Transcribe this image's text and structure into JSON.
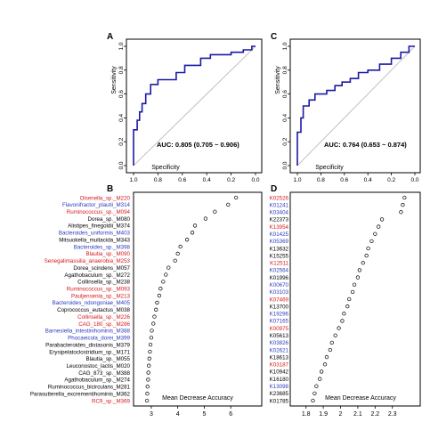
{
  "panel_letters": {
    "a": "A",
    "b": "B",
    "c": "C",
    "d": "D"
  },
  "colors": {
    "red": "#d7191c",
    "blue": "#2b3bbf",
    "black": "#000000",
    "roc": "#1a1aa6",
    "diag": "#b0b0b0"
  },
  "chart_data": [
    {
      "panel": "A",
      "type": "line",
      "ylabel": "Sensitivity",
      "xlabel": "Specificity",
      "x_reversed": true,
      "xlim": [
        1.0,
        0.0
      ],
      "ylim": [
        0.0,
        1.0
      ],
      "xticks": [
        "1.0",
        "0.8",
        "0.6",
        "0.4",
        "0.2",
        "0.0"
      ],
      "yticks": [
        "0.0",
        "0.2",
        "0.4",
        "0.6",
        "0.8",
        "1.0"
      ],
      "annotation": "AUC: 0.805 (0.705 ~ 0.906)",
      "specificity": [
        1.0,
        1.0,
        0.97,
        0.97,
        0.95,
        0.95,
        0.93,
        0.93,
        0.9,
        0.9,
        0.86,
        0.86,
        0.8,
        0.8,
        0.65,
        0.65,
        0.58,
        0.58,
        0.45,
        0.45,
        0.37,
        0.37,
        0.2,
        0.2,
        0.1,
        0.1,
        0.03,
        0.03,
        0.0
      ],
      "sensitivity": [
        0.0,
        0.3,
        0.3,
        0.38,
        0.38,
        0.45,
        0.45,
        0.52,
        0.52,
        0.6,
        0.6,
        0.68,
        0.68,
        0.72,
        0.72,
        0.78,
        0.78,
        0.84,
        0.84,
        0.9,
        0.9,
        0.93,
        0.93,
        0.95,
        0.95,
        0.97,
        0.97,
        1.0,
        1.0
      ]
    },
    {
      "panel": "C",
      "type": "line",
      "ylabel": "Sensitivity",
      "xlabel": "Specificity",
      "x_reversed": true,
      "xlim": [
        1.0,
        0.0
      ],
      "ylim": [
        0.0,
        1.0
      ],
      "xticks": [
        "1.0",
        "0.8",
        "0.6",
        "0.4",
        "0.2",
        "0.0"
      ],
      "yticks": [
        "0.0",
        "0.2",
        "0.4",
        "0.6",
        "0.8",
        "1.0"
      ],
      "annotation": "AUC: 0.764 (0.653 ~ 0.874)",
      "specificity": [
        1.0,
        1.0,
        0.97,
        0.97,
        0.95,
        0.95,
        0.9,
        0.9,
        0.85,
        0.85,
        0.75,
        0.75,
        0.68,
        0.68,
        0.62,
        0.62,
        0.55,
        0.55,
        0.48,
        0.48,
        0.4,
        0.4,
        0.3,
        0.3,
        0.2,
        0.2,
        0.12,
        0.12,
        0.05,
        0.05,
        0.0
      ],
      "sensitivity": [
        0.0,
        0.28,
        0.28,
        0.4,
        0.4,
        0.5,
        0.5,
        0.55,
        0.55,
        0.6,
        0.6,
        0.63,
        0.63,
        0.67,
        0.67,
        0.7,
        0.7,
        0.73,
        0.73,
        0.78,
        0.78,
        0.8,
        0.8,
        0.85,
        0.85,
        0.9,
        0.9,
        0.95,
        0.95,
        1.0,
        1.0
      ]
    },
    {
      "panel": "B",
      "type": "scatter",
      "xlabel": "Mean Decrease Accuracy",
      "xlim": [
        2.6,
        6.9
      ],
      "xticks": [
        3,
        4,
        5,
        6
      ],
      "categories": [
        "Olsenella_sp._M220",
        "Flavonifractor_plautii_M314",
        "Ruminococcus_sp._M094",
        "Dorea_sp._M080",
        "Alistipes_finegoldii_M374",
        "Bacteroides_uniformis_M403",
        "Mitsuokella_multacida_M343",
        "Bacteroides_sp._M398",
        "Blautia_sp._M090",
        "Senegalimassilia_anaerobia_M253",
        "Dorea_scindens_M057",
        "Agathobaculum_sp._M272",
        "Collinsella_sp._M238",
        "Ruminococcus_sp._M093",
        "Pauljensenia_sp._M213",
        "Bacteroides_ndongoniae_M405",
        "Coprococcus_eutactus_M038",
        "Collinsella_sp._M226",
        "CAG_180_sp._M286",
        "Barnesiella_intestinihominis_M388",
        "Phocaeicola_dorei_M399",
        "Parabacteroides_distasonis_M379",
        "Erysipelatoclostridium_sp._M171",
        "Blautia_sp._M055",
        "Leuconostoc_lactis_M020",
        "CAG_873_sp._M388",
        "Agathobaculum_sp._M274",
        "Ruminococcus_bicirculans_M281",
        "Parasutterella_excrementihominis_M362",
        "RC9_sp._M369"
      ],
      "label_colors": [
        "red",
        "blue",
        "red",
        "black",
        "black",
        "blue",
        "black",
        "blue",
        "red",
        "red",
        "black",
        "black",
        "black",
        "red",
        "red",
        "blue",
        "black",
        "red",
        "red",
        "blue",
        "blue",
        "black",
        "black",
        "black",
        "black",
        "black",
        "black",
        "black",
        "black",
        "red"
      ],
      "values": [
        6.2,
        5.9,
        5.4,
        5.05,
        4.65,
        4.55,
        4.35,
        4.1,
        4.0,
        3.9,
        3.65,
        3.55,
        3.45,
        3.35,
        3.3,
        3.22,
        3.18,
        3.12,
        3.08,
        3.02,
        3.0,
        2.97,
        2.95,
        2.93,
        2.91,
        2.89,
        2.88,
        2.86,
        2.85,
        2.84
      ]
    },
    {
      "panel": "D",
      "type": "scatter",
      "xlabel": "Mean Decrease Accuracy",
      "xlim": [
        1.75,
        2.42
      ],
      "xticks": [
        1.8,
        1.9,
        2.0,
        2.1,
        2.2,
        2.3
      ],
      "categories": [
        "K02526",
        "K01241",
        "K03404",
        "K22373",
        "K13954",
        "K01425",
        "K05369",
        "K13632",
        "K15255",
        "K12511",
        "K02564",
        "K01996",
        "K00670",
        "K03103",
        "K07469",
        "K13700",
        "K19296",
        "K07165",
        "K00975",
        "K05613",
        "K03826",
        "K02621",
        "K18613",
        "K03187",
        "K10942",
        "K16180",
        "K13098",
        "K23685",
        "K01785"
      ],
      "label_colors": [
        "red",
        "blue",
        "blue",
        "black",
        "red",
        "blue",
        "blue",
        "black",
        "black",
        "red",
        "blue",
        "black",
        "blue",
        "blue",
        "red",
        "black",
        "blue",
        "blue",
        "red",
        "black",
        "blue",
        "blue",
        "black",
        "red",
        "black",
        "black",
        "blue",
        "black",
        "black"
      ],
      "values": [
        2.37,
        2.36,
        2.35,
        2.24,
        2.22,
        2.2,
        2.18,
        2.16,
        2.15,
        2.13,
        2.11,
        2.1,
        2.08,
        2.07,
        2.05,
        2.04,
        2.02,
        2.01,
        1.99,
        1.97,
        1.95,
        1.94,
        1.92,
        1.91,
        1.89,
        1.88,
        1.86,
        1.85,
        1.84
      ]
    }
  ]
}
